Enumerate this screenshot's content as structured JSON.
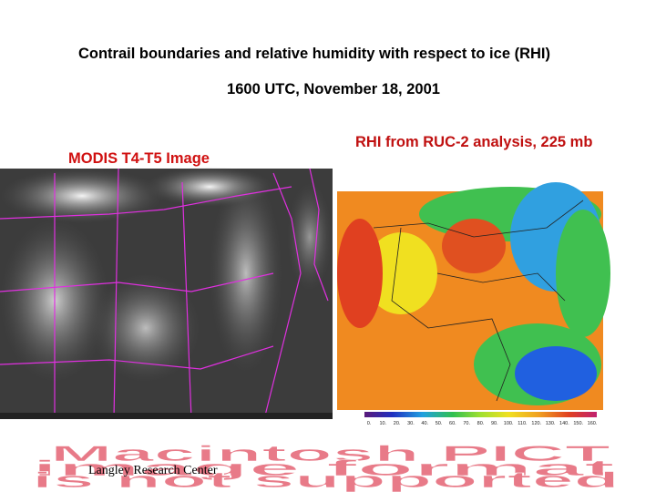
{
  "title": "Contrail boundaries and relative humidity with respect to ice (RHI)",
  "subtitle": "1600 UTC, November 18, 2001",
  "left_panel": {
    "label": "MODIS T4-T5 Image"
  },
  "right_panel": {
    "label": "RHI from RUC-2 analysis, 225 mb",
    "colorbar_labels": [
      "0.",
      "10.",
      "20.",
      "30.",
      "40.",
      "50.",
      "60.",
      "70.",
      "80.",
      "90.",
      "100.",
      "110.",
      "120.",
      "130.",
      "140.",
      "150.",
      "160."
    ]
  },
  "placeholder": {
    "lines": [
      "Macintosh PICT",
      "image format",
      "is not supported"
    ]
  },
  "footer": "Langley Research Center"
}
